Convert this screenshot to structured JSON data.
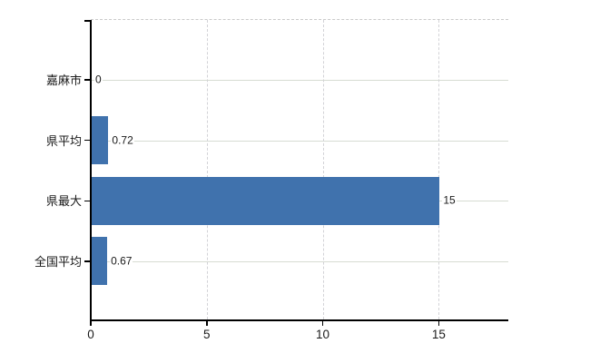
{
  "page": {
    "background": "#ffffff",
    "title": ""
  },
  "chart_data": {
    "type": "bar",
    "orientation": "horizontal",
    "title": "",
    "xlabel": "",
    "ylabel": "",
    "categories": [
      "嘉麻市",
      "県平均",
      "県最大",
      "全国平均"
    ],
    "values": [
      0,
      0.72,
      15,
      0.67
    ],
    "value_labels": [
      "0",
      "0.72",
      "15",
      "0.67"
    ],
    "x_ticks": [
      0,
      5,
      10,
      15
    ],
    "x_tick_labels": [
      "0",
      "5",
      "10",
      "15"
    ],
    "xlim": [
      0,
      18
    ],
    "grid": {
      "horizontal": "solid line at each category center",
      "vertical": "dashed line at each x tick (except 0)",
      "top_border": "dashed"
    },
    "legend": "none",
    "colors": {
      "bar": "#4072ad",
      "horizontal_gridline": "#d7dcd3",
      "vertical_gridline": "#d3d3d7",
      "top_border": "#c9c9c9",
      "axis": "#000000",
      "text": "#1a1a1a",
      "background": "#ffffff"
    }
  }
}
